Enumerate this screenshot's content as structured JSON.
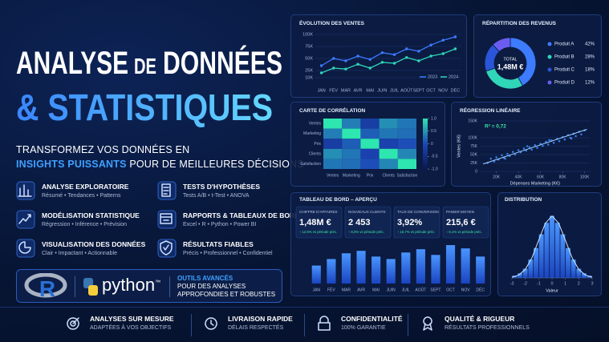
{
  "header": {
    "title_line1": [
      "ANALYSE",
      "DE",
      "DONNÉES"
    ],
    "title_line2": "& STATISTIQUES",
    "subtitle_line1": "TRANSFORMEZ VOS DONNÉES EN",
    "subtitle_highlight": "INSIGHTS PUISSANTS",
    "subtitle_rest": "POUR DE MEILLEURES DÉCISIONS"
  },
  "features": [
    {
      "title": "ANALYSE EXPLORATOIRE",
      "desc": "Résumé • Tendances • Patterns"
    },
    {
      "title": "TESTS D'HYPOTHÈSES",
      "desc": "Tests A/B • t-Test • ANOVA"
    },
    {
      "title": "MODÉLISATION STATISTIQUE",
      "desc": "Régression • Inférence • Prévision"
    },
    {
      "title": "RAPPORTS & TABLEAUX DE BORD",
      "desc": "Excel • R • Python • Power BI"
    },
    {
      "title": "VISUALISATION DES DONNÉES",
      "desc": "Clair • Impactant • Actionnable"
    },
    {
      "title": "RÉSULTATS FIABLES",
      "desc": "Précis • Professionnel • Confidentiel"
    }
  ],
  "tools": {
    "r": "R",
    "python": "python",
    "tm": "™",
    "heading": "OUTILS AVANCÉS",
    "line1": "POUR DES ANALYSES",
    "line2": "APPROFONDIES ET ROBUSTES"
  },
  "footer": [
    {
      "title": "ANALYSES SUR MESURE",
      "desc": "ADAPTÉES À VOS OBJECTIFS"
    },
    {
      "title": "LIVRAISON RAPIDE",
      "desc": "DÉLAIS RESPECTÉS"
    },
    {
      "title": "CONFIDENTIALITÉ",
      "desc": "100% GARANTIE"
    },
    {
      "title": "QUALITÉ & RIGUEUR",
      "desc": "RÉSULTATS PROFESSIONNELS"
    }
  ],
  "kpis": [
    {
      "label": "CHIFFRE D'AFFAIRES",
      "value": "1,48M €",
      "change": "↑ 12,5% vs période préc."
    },
    {
      "label": "NOUVEAUX CLIENTS",
      "value": "2 453",
      "change": "↑ 8,3% vs période préc."
    },
    {
      "label": "TAUX DE CONVERSION",
      "value": "3,92%",
      "change": "↑ 15,7% vs période préc."
    },
    {
      "label": "PANIER MOYEN",
      "value": "215,6 €",
      "change": "↑ 6,1% vs période préc."
    }
  ],
  "chart_data": [
    {
      "type": "line",
      "title": "ÉVOLUTION DES VENTES",
      "categories": [
        "JAN",
        "FÉV",
        "MAR",
        "AVR",
        "MAI",
        "JUIN",
        "JUIL",
        "AOÛT",
        "SEPT",
        "OCT",
        "NOV",
        "DÉC"
      ],
      "series": [
        {
          "name": "2023",
          "color": "#3d7bff",
          "values": [
            35000,
            50000,
            45000,
            55000,
            48000,
            62000,
            58000,
            70000,
            65000,
            78000,
            88000,
            95000
          ]
        },
        {
          "name": "2024",
          "color": "#2fd6b8",
          "values": [
            20000,
            30000,
            28000,
            38000,
            30000,
            42000,
            40000,
            52000,
            45000,
            55000,
            60000,
            70000
          ]
        }
      ],
      "ylim": [
        0,
        100000
      ],
      "yticks": [
        {
          "value": 10000,
          "label": "10K"
        },
        {
          "value": 25000,
          "label": "25K"
        },
        {
          "value": 50000,
          "label": "50K"
        },
        {
          "value": 75000,
          "label": "75K"
        },
        {
          "value": 100000,
          "label": "100K"
        }
      ],
      "grid": true
    },
    {
      "type": "donut",
      "title": "RÉPARTITION DES REVENUS",
      "total_label": "TOTAL",
      "total_value": "1,48M €",
      "categories": [
        "Produit A",
        "Produit B",
        "Produit C",
        "Produit D"
      ],
      "values": [
        42,
        28,
        18,
        12
      ],
      "value_labels": [
        "42%",
        "28%",
        "18%",
        "12%"
      ],
      "colors": [
        "#3d7bff",
        "#2fd6b8",
        "#2a55d8",
        "#6a5cf0"
      ]
    },
    {
      "type": "heatmap",
      "title": "CARTE DE CORRÉLATION",
      "rows": [
        "Ventes",
        "Marketing",
        "Prix",
        "Clients",
        "Satisfaction"
      ],
      "columns": [
        "Ventes",
        "Marketing",
        "Prix",
        "Clients",
        "Satisfaction"
      ],
      "z": [
        [
          1,
          0.35,
          -0.2,
          0.45,
          0.3
        ],
        [
          0.35,
          1,
          0.15,
          0.3,
          0.25
        ],
        [
          -0.2,
          0.15,
          1,
          -0.1,
          0.05
        ],
        [
          0.45,
          0.3,
          -0.1,
          1,
          0.4
        ],
        [
          0.3,
          0.25,
          0.05,
          0.4,
          1
        ]
      ],
      "clim": [
        -1,
        1
      ],
      "cticks": [
        {
          "value": 1,
          "label": "1.0"
        },
        0.5,
        0,
        -0.5,
        {
          "value": -1,
          "label": "-1.0"
        }
      ],
      "colorscale": [
        "#0a1850",
        "#1c46b8",
        "#2ee6b0"
      ]
    },
    {
      "type": "scatter",
      "title": "RÉGRESSION LINÉAIRE",
      "annotation": "R² = 0,72",
      "xlabel": "Dépenses Marketing (K€)",
      "ylabel": "Ventes (K€)",
      "color": "#3d8bff",
      "trend_color": "#9fd0ff",
      "x": [
        12000,
        15000,
        18000,
        20000,
        22000,
        25000,
        27000,
        30000,
        32000,
        35000,
        37000,
        40000,
        42000,
        45000,
        47000,
        50000,
        52000,
        55000,
        57000,
        60000,
        62000,
        65000,
        67000,
        70000,
        72000,
        75000,
        77000,
        80000,
        82000,
        85000,
        87000,
        90000,
        92000,
        95000,
        97000,
        100000,
        28000,
        48000,
        68000,
        88000
      ],
      "y": [
        25000,
        38000,
        30000,
        42000,
        35000,
        48000,
        40000,
        52000,
        46000,
        58000,
        50000,
        63000,
        57000,
        68000,
        62000,
        72000,
        65000,
        78000,
        70000,
        82000,
        76000,
        88000,
        80000,
        92000,
        85000,
        97000,
        90000,
        102000,
        95000,
        108000,
        100000,
        112000,
        105000,
        118000,
        110000,
        122000,
        38000,
        75000,
        93000,
        98000
      ],
      "trend": {
        "x": [
          8000,
          102000
        ],
        "y": [
          22000,
          125000
        ]
      },
      "xlim": [
        5000,
        105000
      ],
      "xticks": [
        {
          "value": 20000,
          "label": "20K"
        },
        {
          "value": 40000,
          "label": "40K"
        },
        {
          "value": 60000,
          "label": "60K"
        },
        {
          "value": 80000,
          "label": "80K"
        },
        {
          "value": 100000,
          "label": "100K"
        }
      ],
      "ylim": [
        0,
        150000
      ],
      "yticks": [
        0,
        {
          "value": 25000,
          "label": "25K"
        },
        {
          "value": 50000,
          "label": "50K"
        },
        {
          "value": 75000,
          "label": "75K"
        },
        {
          "value": 100000,
          "label": "100K"
        },
        {
          "value": 150000,
          "label": "150K"
        }
      ],
      "grid": true
    },
    {
      "type": "bar",
      "title": "TABLEAU DE BORD – APERÇU",
      "categories": [
        "JAN",
        "FÉV",
        "MAR",
        "AVR",
        "MAI",
        "JUIN",
        "JUIL",
        "AOÛT",
        "SEPT",
        "OCT",
        "NOV",
        "DÉC"
      ],
      "values": [
        22,
        30,
        37,
        40,
        33,
        30,
        38,
        42,
        35,
        47,
        43,
        33
      ],
      "ylim": [
        0,
        50
      ]
    },
    {
      "type": "histogram",
      "title": "DISTRIBUTION",
      "xlabel": "Valeur",
      "bins": [
        -3,
        -2.6,
        -2.2,
        -1.8,
        -1.4,
        -1,
        -0.6,
        -0.2,
        0.2,
        0.6,
        1,
        1.4,
        1.8,
        2.2,
        2.6,
        3
      ],
      "counts": [
        1,
        2,
        4,
        8,
        13,
        19,
        24,
        27,
        24,
        19,
        13,
        8,
        4,
        2,
        1
      ],
      "curve": {
        "x": [
          -3,
          -2.5,
          -2,
          -1.5,
          -1,
          -0.5,
          0,
          0.5,
          1,
          1.5,
          2,
          2.5,
          3
        ],
        "y": [
          0.3,
          1.2,
          3.7,
          8.8,
          16.4,
          23.8,
          27,
          23.8,
          16.4,
          8.8,
          3.7,
          1.2,
          0.3
        ]
      },
      "xlim": [
        -3,
        3
      ],
      "xticks": [
        -3,
        -2,
        -1,
        0,
        1,
        2,
        3
      ],
      "ylim": [
        0,
        30
      ],
      "color": "#3d7bff"
    }
  ]
}
